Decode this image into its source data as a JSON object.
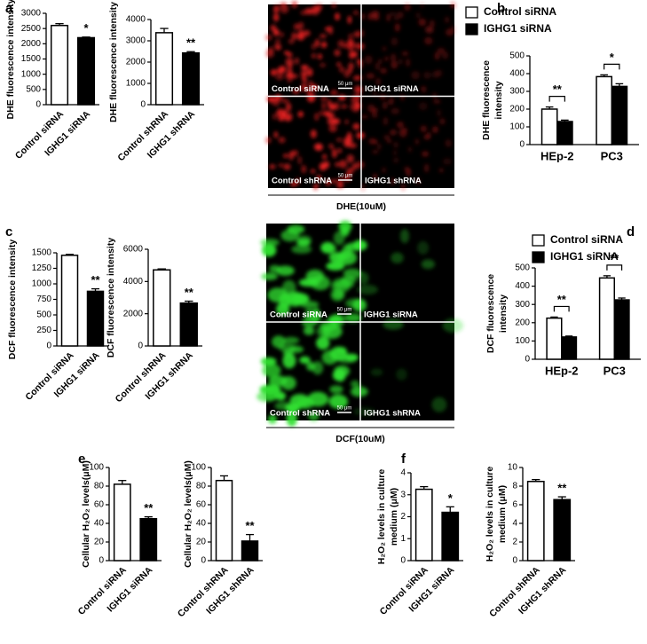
{
  "panel_letters": [
    "a",
    "b",
    "c",
    "d",
    "e",
    "f"
  ],
  "micrographs": [
    {
      "caption": "DHE(10uM)",
      "panels": [
        "Control siRNA",
        "IGHG1 siRNA",
        "Control shRNA",
        "IGHG1 shRNA"
      ],
      "scale_bar": "50 μm",
      "color": "#e02020"
    },
    {
      "caption": "DCF(10uM)",
      "panels": [
        "Control siRNA",
        "IGHG1 siRNA",
        "Control shRNA",
        "IGHG1 shRNA"
      ],
      "scale_bar": "50 μm",
      "color": "#30e030"
    }
  ],
  "chart_data": [
    {
      "type": "bar",
      "ylabel": [
        "DHE fluorescence intensity"
      ],
      "categories": [
        "Control siRNA",
        "IGHG1 siRNA"
      ],
      "values": [
        2600,
        2200
      ],
      "errors": [
        60,
        20
      ],
      "colors": [
        "#ffffff",
        "#000000"
      ],
      "annotations": [
        null,
        "*"
      ],
      "ylim": [
        0,
        3000
      ],
      "yticks": [
        0,
        500,
        1000,
        1500,
        2000,
        2500,
        3000
      ]
    },
    {
      "type": "bar",
      "ylabel": [
        "DHE fluorescence intensity"
      ],
      "categories": [
        "Control shRNA",
        "IGHG1 shRNA"
      ],
      "values": [
        3380,
        2430
      ],
      "errors": [
        200,
        60
      ],
      "colors": [
        "#ffffff",
        "#000000"
      ],
      "annotations": [
        null,
        "**"
      ],
      "ylim": [
        0,
        4000
      ],
      "yticks": [
        0,
        1000,
        2000,
        3000,
        4000
      ]
    },
    {
      "type": "grouped_bar",
      "ylabel": [
        "DHE fluorescence",
        "intensity"
      ],
      "categories": [
        "HEp-2",
        "PC3"
      ],
      "series": [
        {
          "name": "Control siRNA",
          "color": "#ffffff",
          "values": [
            200,
            383
          ],
          "errors": [
            12,
            10
          ]
        },
        {
          "name": "IGHG1 siRNA",
          "color": "#000000",
          "values": [
            130,
            328
          ],
          "errors": [
            8,
            15
          ]
        }
      ],
      "annotations": [
        "**",
        "*"
      ],
      "ylim": [
        0,
        500
      ],
      "yticks": [
        0,
        100,
        200,
        300,
        400,
        500
      ]
    },
    {
      "type": "bar",
      "ylabel": [
        "DCF fluorescence intensity"
      ],
      "categories": [
        "Control siRNA",
        "IGHG1 siRNA"
      ],
      "values": [
        1460,
        880
      ],
      "errors": [
        15,
        40
      ],
      "colors": [
        "#ffffff",
        "#000000"
      ],
      "annotations": [
        null,
        "**"
      ],
      "ylim": [
        0,
        1500
      ],
      "yticks": [
        0,
        250,
        500,
        750,
        1000,
        1250,
        1500
      ]
    },
    {
      "type": "bar",
      "ylabel": [
        "DCF fluorescence intensity"
      ],
      "categories": [
        "Control shRNA",
        "IGHG1 shRNA"
      ],
      "values": [
        4720,
        2660
      ],
      "errors": [
        60,
        120
      ],
      "colors": [
        "#ffffff",
        "#000000"
      ],
      "annotations": [
        null,
        "**"
      ],
      "ylim": [
        0,
        6000
      ],
      "yticks": [
        0,
        2000,
        4000,
        6000
      ]
    },
    {
      "type": "grouped_bar",
      "ylabel": [
        "DCF fluorescence",
        "intensity"
      ],
      "categories": [
        "HEp-2",
        "PC3"
      ],
      "series": [
        {
          "name": "Control siRNA",
          "color": "#ffffff",
          "values": [
            225,
            445
          ],
          "errors": [
            6,
            12
          ]
        },
        {
          "name": "IGHG1 siRNA",
          "color": "#000000",
          "values": [
            122,
            325
          ],
          "errors": [
            5,
            10
          ]
        }
      ],
      "annotations": [
        "**",
        "**"
      ],
      "ylim": [
        0,
        500
      ],
      "yticks": [
        0,
        100,
        200,
        300,
        400,
        500
      ]
    },
    {
      "type": "bar",
      "ylabel": [
        "Cellular H₂O₂ levels(μM)"
      ],
      "categories": [
        "Control siRNA",
        "IGHG1 siRNA"
      ],
      "values": [
        82,
        45
      ],
      "errors": [
        4,
        2
      ],
      "colors": [
        "#ffffff",
        "#000000"
      ],
      "annotations": [
        null,
        "**"
      ],
      "ylim": [
        0,
        100
      ],
      "yticks": [
        0,
        20,
        40,
        60,
        80,
        100
      ]
    },
    {
      "type": "bar",
      "ylabel": [
        "Cellular H₂O₂ levels(μM)"
      ],
      "categories": [
        "Control shRNA",
        "IGHG1 shRNA"
      ],
      "values": [
        86,
        21
      ],
      "errors": [
        5,
        7
      ],
      "colors": [
        "#ffffff",
        "#000000"
      ],
      "annotations": [
        null,
        "**"
      ],
      "ylim": [
        0,
        100
      ],
      "yticks": [
        0,
        20,
        40,
        60,
        80,
        100
      ]
    },
    {
      "type": "bar",
      "ylabel": [
        "H₂O₂ levels in culture",
        "medium (μM)"
      ],
      "categories": [
        "Control siRNA",
        "IGHG1 siRNA"
      ],
      "values": [
        3.25,
        2.2
      ],
      "errors": [
        0.12,
        0.25
      ],
      "colors": [
        "#ffffff",
        "#000000"
      ],
      "annotations": [
        null,
        "*"
      ],
      "ylim": [
        0,
        4
      ],
      "yticks": [
        0,
        1,
        2,
        3,
        4
      ]
    },
    {
      "type": "bar",
      "ylabel": [
        "H₂O₂ levels in culture",
        "medium (μM)"
      ],
      "categories": [
        "Control shRNA",
        "IGHG1 shRNA"
      ],
      "values": [
        8.5,
        6.55
      ],
      "errors": [
        0.2,
        0.3
      ],
      "colors": [
        "#ffffff",
        "#000000"
      ],
      "annotations": [
        null,
        "**"
      ],
      "ylim": [
        0,
        10
      ],
      "yticks": [
        0,
        2,
        4,
        6,
        8,
        10
      ]
    }
  ]
}
